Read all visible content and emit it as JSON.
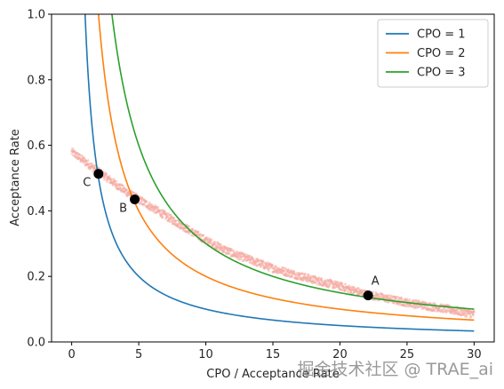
{
  "watermark": "掘金技术社区 @ TRAE_ai",
  "chart_data": {
    "type": "line",
    "title": "",
    "xlabel": "CPO / Acceptance Rate",
    "ylabel": "Acceptance Rate",
    "xlim": [
      -1.5,
      31.5
    ],
    "ylim": [
      0.0,
      1.0
    ],
    "xticks": [
      0,
      5,
      10,
      15,
      20,
      25,
      30
    ],
    "yticks": [
      0.0,
      0.2,
      0.4,
      0.6,
      0.8,
      1.0
    ],
    "grid": false,
    "legend_position": "top-right",
    "series": [
      {
        "name": "CPO = 1",
        "cpo": 1,
        "x_range": [
          0.5,
          30
        ],
        "color": "#1f77b4"
      },
      {
        "name": "CPO = 2",
        "cpo": 2,
        "x_range": [
          0.5,
          30
        ],
        "color": "#ff7f0e"
      },
      {
        "name": "CPO = 3",
        "cpo": 3,
        "x_range": [
          0.5,
          30
        ],
        "color": "#2ca02c"
      }
    ],
    "scatter_band": {
      "color": "#f4a9a0",
      "x": [
        0,
        2,
        4,
        6,
        8,
        10,
        12,
        15,
        18,
        20,
        22,
        25,
        28,
        30
      ],
      "y": [
        0.58,
        0.52,
        0.46,
        0.41,
        0.36,
        0.31,
        0.27,
        0.225,
        0.19,
        0.17,
        0.145,
        0.12,
        0.1,
        0.085
      ]
    },
    "points": [
      {
        "label": "A",
        "x": 22.1,
        "y": 0.142
      },
      {
        "label": "B",
        "x": 4.7,
        "y": 0.435
      },
      {
        "label": "C",
        "x": 2.0,
        "y": 0.513
      }
    ]
  }
}
